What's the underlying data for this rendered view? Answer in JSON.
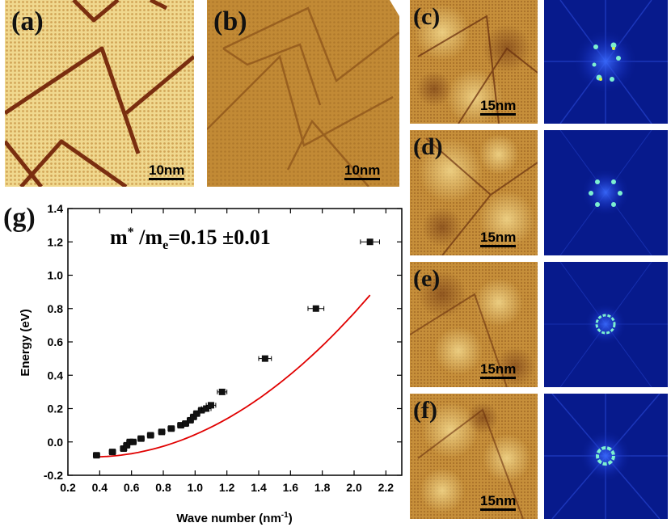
{
  "panels": {
    "a": {
      "label": "(a)",
      "scale": "10nm"
    },
    "b": {
      "label": "(b)",
      "scale": "10nm"
    },
    "c": {
      "label": "(c)",
      "scale": "15nm"
    },
    "d": {
      "label": "(d)",
      "scale": "15nm"
    },
    "e": {
      "label": "(e)",
      "scale": "15nm"
    },
    "f": {
      "label": "(f)",
      "scale": "15nm"
    }
  },
  "colors": {
    "stm_bright": "#f2dc9a",
    "stm_mid": "#c48a2e",
    "stm_dark": "#7a3c10",
    "fft_bg": "#071a8c",
    "fft_spot": "#7cf0d0",
    "fit_line": "#e00000"
  },
  "chart_data": {
    "type": "scatter",
    "panel_label": "(g)",
    "annotation": {
      "m": "m",
      "sup": "*",
      "slash": " /m",
      "sub": "e",
      "value": "=0.15 ±0.01"
    },
    "xlabel": {
      "text": "Wave number (nm",
      "sup": "-1",
      "close": ")"
    },
    "ylabel": "Energy (eV)",
    "xlim": [
      0.2,
      2.3
    ],
    "ylim": [
      -0.2,
      1.4
    ],
    "xticks": [
      "0.2",
      "0.4",
      "0.6",
      "0.8",
      "1.0",
      "1.2",
      "1.4",
      "1.6",
      "1.8",
      "2.0",
      "2.2"
    ],
    "yticks": [
      "-0.2",
      "0.0",
      "0.2",
      "0.4",
      "0.6",
      "0.8",
      "1.0",
      "1.2",
      "1.4"
    ],
    "series": [
      {
        "x": [
          0.38,
          0.48,
          0.55,
          0.57,
          0.59,
          0.61,
          0.66,
          0.72,
          0.79,
          0.85,
          0.91,
          0.94,
          0.97,
          0.99,
          1.01,
          1.04,
          1.07,
          1.1,
          1.17,
          1.44,
          1.76,
          2.1
        ],
        "y": [
          -0.08,
          -0.06,
          -0.04,
          -0.02,
          0.0,
          0.0,
          0.02,
          0.04,
          0.06,
          0.08,
          0.1,
          0.11,
          0.13,
          0.15,
          0.17,
          0.19,
          0.2,
          0.22,
          0.3,
          0.5,
          0.8,
          1.2
        ],
        "xerr": [
          0.02,
          0.02,
          0.02,
          0.02,
          0.02,
          0.02,
          0.02,
          0.02,
          0.02,
          0.02,
          0.02,
          0.02,
          0.02,
          0.02,
          0.02,
          0.02,
          0.03,
          0.03,
          0.03,
          0.04,
          0.05,
          0.06
        ],
        "yerr": [
          0.01,
          0.01,
          0.01,
          0.01,
          0.01,
          0.01,
          0.01,
          0.01,
          0.01,
          0.01,
          0.01,
          0.01,
          0.01,
          0.01,
          0.01,
          0.01,
          0.01,
          0.01,
          0.015,
          0.015,
          0.015,
          0.015
        ]
      }
    ],
    "fit": {
      "a": 0.317,
      "k0": 0.35,
      "e0": -0.09,
      "x_start": 0.36,
      "x_end": 2.1
    }
  }
}
